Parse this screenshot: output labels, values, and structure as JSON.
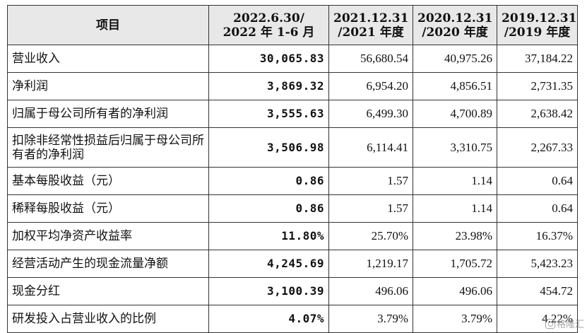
{
  "table": {
    "headers": [
      {
        "line1": "项目",
        "line2": ""
      },
      {
        "line1": "2022.6.30/",
        "line2": "2022 年 1-6 月"
      },
      {
        "line1": "2021.12.31",
        "line2": "/2021 年度"
      },
      {
        "line1": "2020.12.31",
        "line2": "/2020 年度"
      },
      {
        "line1": "2019.12.31",
        "line2": "/2019 年度"
      }
    ],
    "rows": [
      {
        "label": "营业收入",
        "v2022h1": "30,065.83",
        "v2021": "56,680.54",
        "v2020": "40,975.26",
        "v2019": "37,184.22"
      },
      {
        "label": "净利润",
        "v2022h1": "3,869.32",
        "v2021": "6,954.20",
        "v2020": "4,856.51",
        "v2019": "2,731.35"
      },
      {
        "label": "归属于母公司所有者的净利润",
        "v2022h1": "3,555.63",
        "v2021": "6,499.30",
        "v2020": "4,700.89",
        "v2019": "2,638.42"
      },
      {
        "label": "扣除非经常性损益后归属于母公司所有者的净利润",
        "v2022h1": "3,506.98",
        "v2021": "6,114.41",
        "v2020": "3,310.75",
        "v2019": "2,267.33"
      },
      {
        "label": "基本每股收益（元）",
        "v2022h1": "0.86",
        "v2021": "1.57",
        "v2020": "1.14",
        "v2019": "0.64"
      },
      {
        "label": "稀释每股收益（元）",
        "v2022h1": "0.86",
        "v2021": "1.57",
        "v2020": "1.14",
        "v2019": "0.64"
      },
      {
        "label": "加权平均净资产收益率",
        "v2022h1": "11.80%",
        "v2021": "25.70%",
        "v2020": "23.98%",
        "v2019": "16.37%"
      },
      {
        "label": "经营活动产生的现金流量净额",
        "v2022h1": "4,245.69",
        "v2021": "1,219.17",
        "v2020": "1,705.72",
        "v2019": "5,423.23"
      },
      {
        "label": "现金分红",
        "v2022h1": "3,100.39",
        "v2021": "496.06",
        "v2020": "496.06",
        "v2019": "454.72"
      },
      {
        "label": "研发投入占营业收入的比例",
        "v2022h1": "4.07%",
        "v2021": "3.79%",
        "v2020": "3.79%",
        "v2019": "4.22%"
      }
    ]
  },
  "watermark": {
    "text": "格隆汇",
    "icon": "watermark-logo-icon"
  }
}
